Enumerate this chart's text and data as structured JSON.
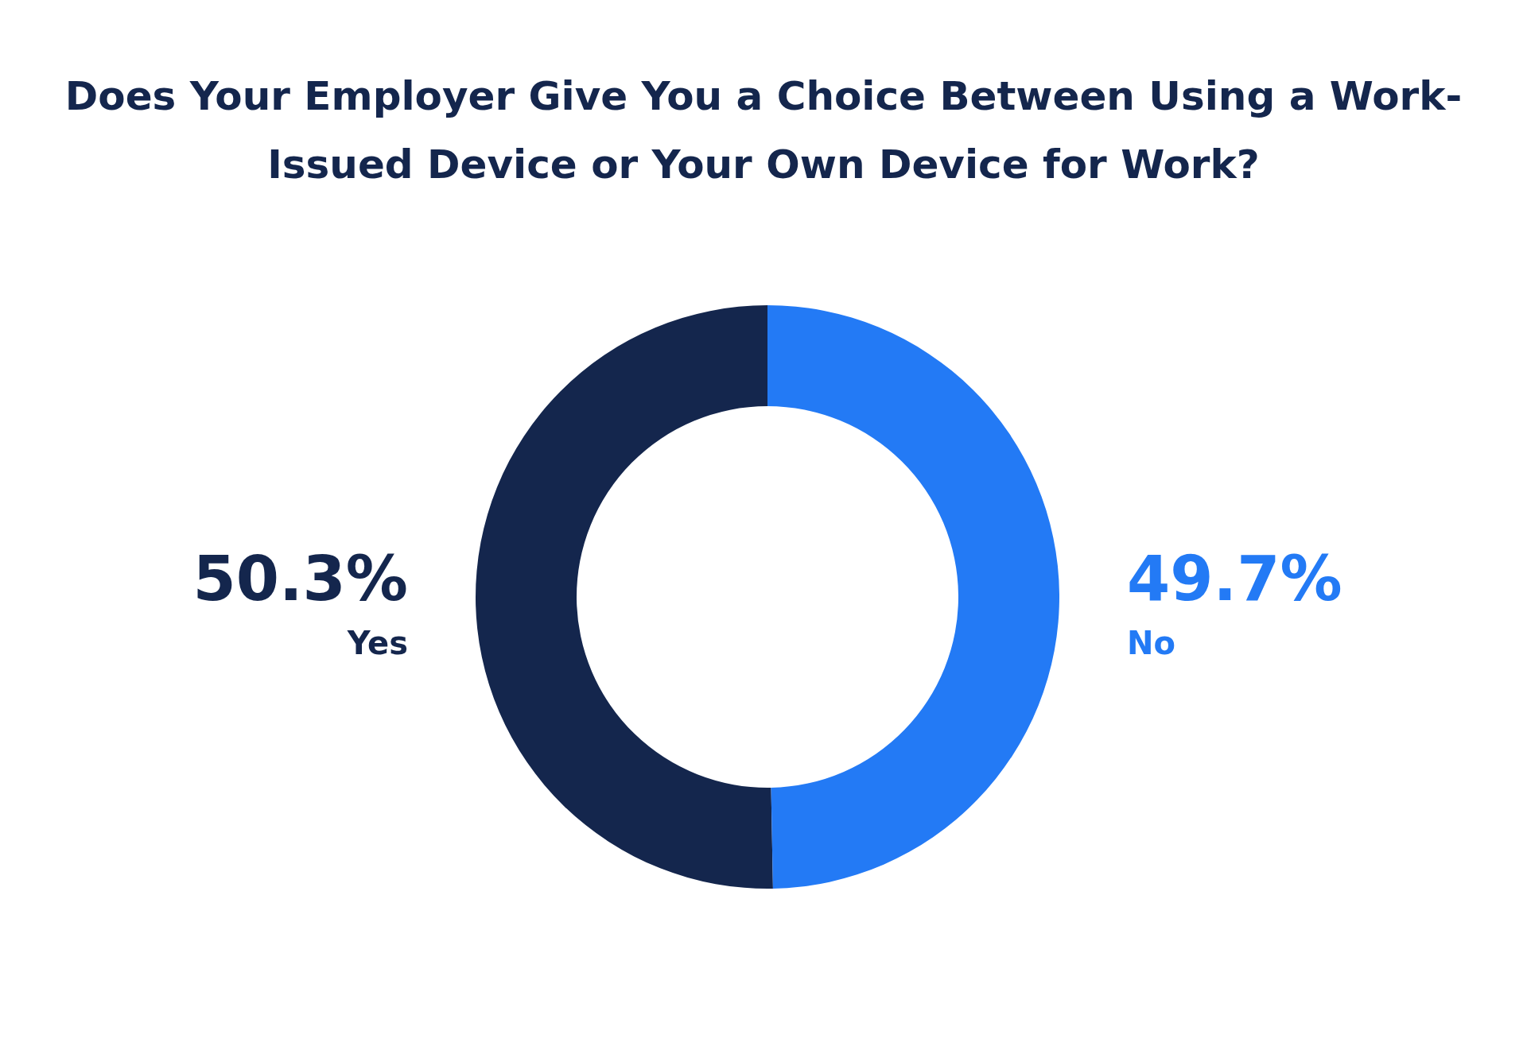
{
  "chart_data": {
    "type": "donut",
    "title": "Does Your Employer Give You a Choice Between Using a Work-Issued Device or Your Own Device for Work?",
    "categories": [
      "Yes",
      "No"
    ],
    "values": [
      50.3,
      49.7
    ],
    "colors": [
      "#14264d",
      "#237af5"
    ],
    "value_labels": [
      "50.3%",
      "49.7%"
    ],
    "legend": false
  }
}
